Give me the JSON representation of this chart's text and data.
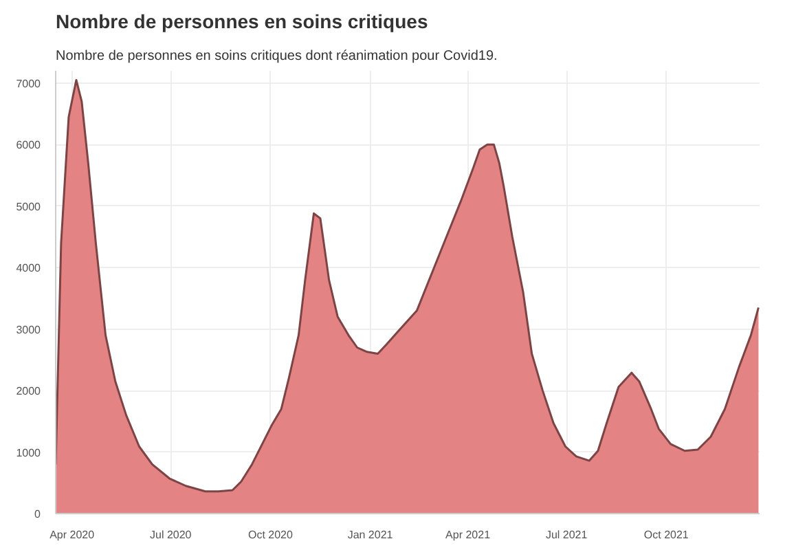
{
  "chart_data": {
    "type": "area",
    "title": "Nombre de personnes en soins critiques",
    "subtitle": "Nombre de personnes en soins critiques dont réanimation pour Covid19.",
    "x": [
      "2020-03-17",
      "2020-03-22",
      "2020-03-29",
      "2020-04-05",
      "2020-04-10",
      "2020-04-16",
      "2020-04-23",
      "2020-05-02",
      "2020-05-11",
      "2020-05-21",
      "2020-06-02",
      "2020-06-14",
      "2020-06-30",
      "2020-07-15",
      "2020-08-02",
      "2020-08-14",
      "2020-08-27",
      "2020-09-04",
      "2020-09-14",
      "2020-09-24",
      "2020-10-02",
      "2020-10-11",
      "2020-10-18",
      "2020-10-27",
      "2020-11-02",
      "2020-11-10",
      "2020-11-16",
      "2020-11-24",
      "2020-12-02",
      "2020-12-12",
      "2020-12-20",
      "2020-12-29",
      "2021-01-08",
      "2021-01-16",
      "2021-01-26",
      "2021-02-13",
      "2021-03-10",
      "2021-03-26",
      "2021-04-06",
      "2021-04-12",
      "2021-04-19",
      "2021-04-25",
      "2021-04-30",
      "2021-05-04",
      "2021-05-12",
      "2021-05-22",
      "2021-05-30",
      "2021-06-09",
      "2021-06-19",
      "2021-06-30",
      "2021-07-10",
      "2021-07-22",
      "2021-07-30",
      "2021-08-07",
      "2021-08-18",
      "2021-08-30",
      "2021-09-06",
      "2021-09-17",
      "2021-09-24",
      "2021-10-05",
      "2021-10-18",
      "2021-10-30",
      "2021-11-11",
      "2021-11-24",
      "2021-12-07",
      "2021-12-18",
      "2021-12-25"
    ],
    "series": [
      {
        "color": "#e27c7c",
        "values": [
          800,
          4400,
          6450,
          7050,
          6700,
          5700,
          4400,
          2900,
          2150,
          1600,
          1090,
          800,
          570,
          450,
          360,
          360,
          380,
          520,
          800,
          1150,
          1430,
          1700,
          2200,
          2900,
          3800,
          4880,
          4800,
          3800,
          3200,
          2900,
          2700,
          2630,
          2600,
          2750,
          2950,
          3300,
          4400,
          5100,
          5620,
          5920,
          6000,
          6000,
          5700,
          5330,
          4500,
          3600,
          2600,
          2000,
          1470,
          1090,
          930,
          860,
          1020,
          1470,
          2060,
          2290,
          2150,
          1700,
          1380,
          1130,
          1020,
          1040,
          1250,
          1700,
          2380,
          2900,
          3350
        ]
      }
    ],
    "xlim": [
      "2020-03-17",
      "2021-12-26"
    ],
    "ylim": [
      0,
      7200
    ],
    "xticks": [
      {
        "value": "2020-04",
        "label": "Apr 2020"
      },
      {
        "value": "2020-07",
        "label": "Jul 2020"
      },
      {
        "value": "2020-10",
        "label": "Oct 2020"
      },
      {
        "value": "2021-01",
        "label": "Jan 2021"
      },
      {
        "value": "2021-04",
        "label": "Apr 2021"
      },
      {
        "value": "2021-07",
        "label": "Jul 2021"
      },
      {
        "value": "2021-10",
        "label": "Oct 2021"
      }
    ],
    "yticks": [
      0,
      1000,
      2000,
      3000,
      4000,
      5000,
      6000,
      7000
    ],
    "grid": true
  }
}
